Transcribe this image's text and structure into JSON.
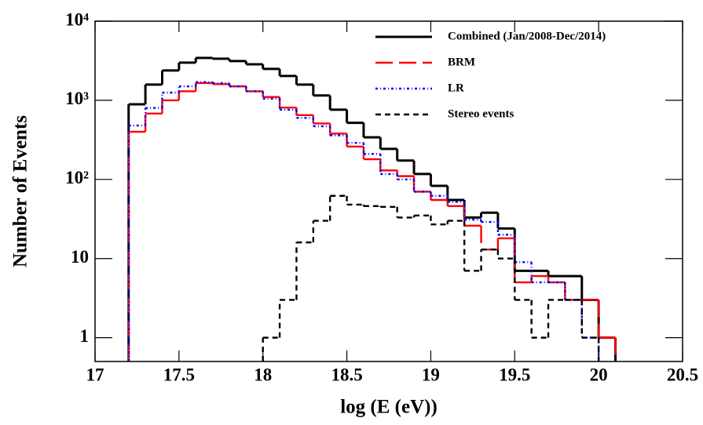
{
  "chart_data": {
    "type": "histogram",
    "xlabel": "log (E (eV))",
    "ylabel": "Number of Events",
    "bins": [
      17.2,
      17.3,
      17.4,
      17.5,
      17.6,
      17.7,
      17.8,
      17.9,
      18.0,
      18.1,
      18.2,
      18.3,
      18.4,
      18.5,
      18.6,
      18.7,
      18.8,
      18.9,
      19.0,
      19.1,
      19.2,
      19.3,
      19.4,
      19.5,
      19.6,
      19.7,
      19.8,
      19.9,
      20.0,
      20.1
    ],
    "series": [
      {
        "name": "Combined (Jan/2008-Dec/2014)",
        "color": "#000000",
        "linestyle": "solid",
        "values": [
          890,
          1580,
          2380,
          2990,
          3430,
          3350,
          3130,
          2850,
          2490,
          2030,
          1580,
          1150,
          760,
          520,
          340,
          243,
          173,
          117,
          83,
          55,
          33,
          38,
          24,
          7,
          7,
          6,
          6,
          3,
          1
        ]
      },
      {
        "name": "BRM",
        "color": "#ff0000",
        "linestyle": "longdash",
        "values": [
          400,
          680,
          1000,
          1300,
          1650,
          1600,
          1500,
          1300,
          1100,
          810,
          650,
          510,
          380,
          260,
          180,
          130,
          110,
          70,
          55,
          46,
          26,
          13,
          18,
          5,
          6,
          5,
          3,
          3,
          1
        ]
      },
      {
        "name": "LR",
        "color": "#0000ff",
        "linestyle": "dashdot",
        "values": [
          480,
          800,
          1250,
          1500,
          1700,
          1650,
          1500,
          1300,
          1050,
          760,
          600,
          470,
          360,
          290,
          210,
          117,
          100,
          70,
          62,
          52,
          31,
          29,
          20,
          9,
          5,
          5,
          3,
          1,
          null
        ]
      },
      {
        "name": "Stereo events",
        "color": "#000000",
        "linestyle": "dashed",
        "values": [
          null,
          null,
          null,
          null,
          null,
          null,
          null,
          null,
          1,
          3,
          16,
          30,
          62,
          48,
          46,
          45,
          33,
          35,
          27,
          30,
          7,
          13,
          10,
          3,
          1,
          3,
          3,
          1,
          null
        ]
      }
    ],
    "xlim": [
      17,
      20.5
    ],
    "xticks": [
      17,
      17.5,
      18,
      18.5,
      19,
      19.5,
      20,
      20.5
    ],
    "ylim": [
      0.5,
      10000
    ],
    "yscale": "log",
    "yticks": [
      1,
      10,
      {
        "value": 100,
        "label": "10²"
      },
      {
        "value": 1000,
        "label": "10³"
      },
      {
        "value": 10000,
        "label": "10⁴"
      }
    ],
    "legend": "upper right"
  }
}
